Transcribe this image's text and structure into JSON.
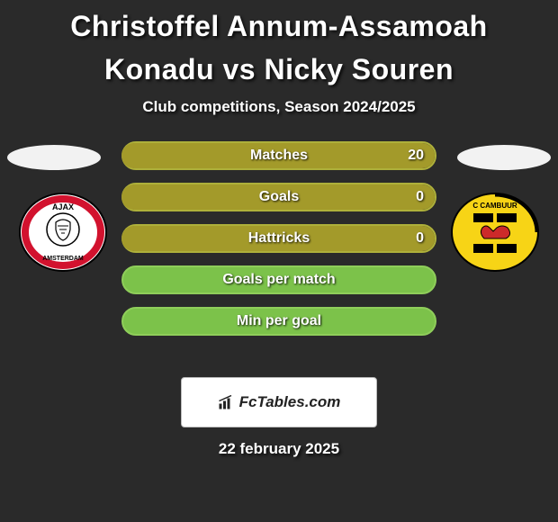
{
  "title": "Christoffel Annum-Assamoah Konadu vs Nicky Souren",
  "subtitle": "Club competitions, Season 2024/2025",
  "date": "22 february 2025",
  "brand": "FcTables.com",
  "colors": {
    "background": "#2a2a2a",
    "halo": "#f2f2f2",
    "white": "#ffffff",
    "bar_olive": "#a39a2a",
    "bar_olive_border": "#aeb03a",
    "bar_green": "#7cc24a",
    "bar_green_border": "#8fce5a",
    "text_shadow": "rgba(0,0,0,0.8)"
  },
  "crest_left": {
    "name": "ajax",
    "bg": "#ffffff",
    "red": "#d2122e",
    "black": "#000000"
  },
  "crest_right": {
    "name": "cambuur",
    "bg": "#f7d416",
    "black": "#000000",
    "red": "#cc2a2a"
  },
  "bars": [
    {
      "label": "Matches",
      "left_val": "",
      "right_val": "20",
      "left_pct": 0,
      "right_pct": 100,
      "fill": "olive"
    },
    {
      "label": "Goals",
      "left_val": "",
      "right_val": "0",
      "left_pct": 0,
      "right_pct": 100,
      "fill": "olive"
    },
    {
      "label": "Hattricks",
      "left_val": "",
      "right_val": "0",
      "left_pct": 0,
      "right_pct": 100,
      "fill": "olive"
    },
    {
      "label": "Goals per match",
      "left_val": "",
      "right_val": "",
      "left_pct": 0,
      "right_pct": 0,
      "fill": "green"
    },
    {
      "label": "Min per goal",
      "left_val": "",
      "right_val": "",
      "left_pct": 0,
      "right_pct": 0,
      "fill": "green"
    }
  ]
}
